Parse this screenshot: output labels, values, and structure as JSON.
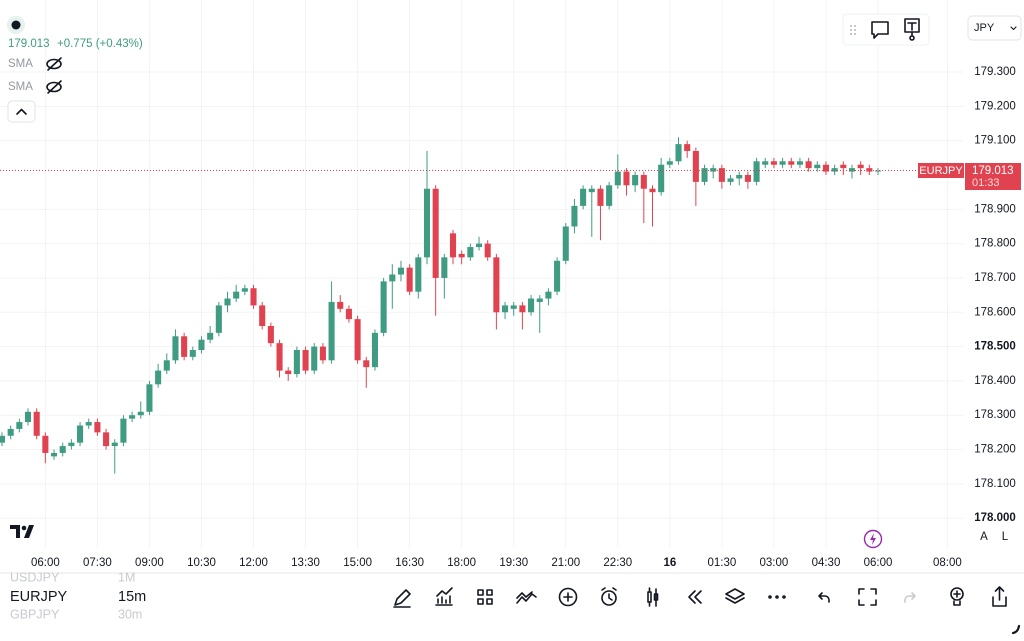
{
  "chart_data": {
    "type": "candlestick",
    "symbol": "EURJPY",
    "last_time": "01:33",
    "up_color": "#3f9c82",
    "down_color": "#e0434f",
    "grid": true,
    "ylim": [
      177.913,
      179.51
    ],
    "xlim": [
      -0.23,
      110.8
    ],
    "yticks": [
      {
        "value": 178.0,
        "label": "178.000"
      },
      {
        "value": 178.1,
        "label": "178.100"
      },
      {
        "value": 178.2,
        "label": "178.200"
      },
      {
        "value": 178.3,
        "label": "178.300"
      },
      {
        "value": 178.4,
        "label": "178.400"
      },
      {
        "value": 178.5,
        "label": "178.500"
      },
      {
        "value": 178.6,
        "label": "178.600"
      },
      {
        "value": 178.7,
        "label": "178.700"
      },
      {
        "value": 178.8,
        "label": "178.800"
      },
      {
        "value": 178.9,
        "label": "178.900"
      },
      {
        "value": 179.1,
        "label": "179.100"
      },
      {
        "value": 179.2,
        "label": "179.200"
      },
      {
        "value": 179.3,
        "label": "179.300"
      }
    ],
    "xticks": [
      {
        "value": 5,
        "label": "06:00"
      },
      {
        "value": 11,
        "label": "07:30"
      },
      {
        "value": 17,
        "label": "09:00"
      },
      {
        "value": 23,
        "label": "10:30"
      },
      {
        "value": 29,
        "label": "12:00"
      },
      {
        "value": 35,
        "label": "13:30"
      },
      {
        "value": 41,
        "label": "15:00"
      },
      {
        "value": 47,
        "label": "16:30"
      },
      {
        "value": 53,
        "label": "18:00"
      },
      {
        "value": 59,
        "label": "19:30"
      },
      {
        "value": 65,
        "label": "21:00"
      },
      {
        "value": 71,
        "label": "22:30"
      },
      {
        "value": 77,
        "label": "16"
      },
      {
        "value": 83,
        "label": "01:30"
      },
      {
        "value": 89,
        "label": "03:00"
      },
      {
        "value": 95,
        "label": "04:30"
      },
      {
        "value": 101,
        "label": "06:00"
      },
      {
        "value": 109,
        "label": "08:00"
      }
    ],
    "open": [
      178.22,
      178.24,
      178.26,
      178.28,
      178.31,
      178.24,
      178.18,
      178.19,
      178.21,
      178.22,
      178.27,
      178.28,
      178.25,
      178.21,
      178.22,
      178.29,
      178.3,
      178.31,
      178.39,
      178.43,
      178.46,
      178.53,
      178.47,
      178.49,
      178.52,
      178.54,
      178.62,
      178.64,
      178.66,
      178.67,
      178.62,
      178.56,
      178.51,
      178.43,
      178.42,
      178.49,
      178.43,
      178.5,
      178.46,
      178.63,
      178.61,
      178.58,
      178.46,
      178.44,
      178.54,
      178.69,
      178.71,
      178.73,
      178.66,
      178.76,
      178.96,
      178.7,
      178.83,
      178.77,
      178.76,
      178.79,
      178.8,
      178.76,
      178.6,
      178.61,
      178.62,
      178.6,
      178.63,
      178.64,
      178.66,
      178.75,
      178.85,
      178.91,
      178.95,
      178.96,
      178.91,
      178.97,
      179.01,
      178.97,
      179.0,
      178.96,
      178.95,
      179.03,
      179.04,
      179.09,
      179.07,
      178.98,
      179.01,
      179.02,
      178.98,
      178.99,
      179.0,
      178.98,
      179.03,
      179.04,
      179.03,
      179.04,
      179.03,
      179.04,
      179.02,
      179.03,
      179.01,
      179.03,
      179.01,
      179.03,
      179.02,
      179.01
    ],
    "high": [
      178.25,
      178.27,
      178.29,
      178.32,
      178.32,
      178.25,
      178.2,
      178.22,
      178.23,
      178.28,
      178.29,
      178.29,
      178.26,
      178.23,
      178.3,
      178.31,
      178.34,
      178.4,
      178.45,
      178.48,
      178.55,
      178.54,
      178.5,
      178.53,
      178.56,
      178.63,
      178.66,
      178.68,
      178.68,
      178.68,
      178.63,
      178.57,
      178.52,
      178.44,
      178.5,
      178.5,
      178.51,
      178.51,
      178.69,
      178.65,
      178.62,
      178.59,
      178.47,
      178.55,
      178.7,
      178.74,
      178.75,
      178.74,
      178.77,
      179.07,
      178.97,
      178.77,
      178.84,
      178.78,
      178.8,
      178.82,
      178.81,
      178.77,
      178.63,
      178.63,
      178.63,
      178.65,
      178.65,
      178.67,
      178.76,
      178.86,
      178.93,
      178.97,
      178.97,
      178.97,
      178.98,
      179.06,
      179.02,
      179.01,
      179.01,
      178.97,
      179.05,
      179.05,
      179.11,
      179.1,
      179.08,
      179.03,
      179.03,
      179.03,
      179.0,
      179.01,
      179.01,
      179.05,
      179.05,
      179.05,
      179.05,
      179.05,
      179.05,
      179.05,
      179.04,
      179.04,
      179.03,
      179.04,
      179.03,
      179.04,
      179.03,
      179.02
    ],
    "low": [
      178.21,
      178.23,
      178.25,
      178.27,
      178.23,
      178.16,
      178.17,
      178.18,
      178.2,
      178.21,
      178.26,
      178.24,
      178.2,
      178.13,
      178.21,
      178.28,
      178.29,
      178.3,
      178.38,
      178.42,
      178.45,
      178.46,
      178.46,
      178.48,
      178.51,
      178.53,
      178.6,
      178.63,
      178.65,
      178.61,
      178.55,
      178.5,
      178.41,
      178.4,
      178.41,
      178.42,
      178.42,
      178.45,
      178.45,
      178.6,
      178.57,
      178.45,
      178.38,
      178.43,
      178.53,
      178.61,
      178.69,
      178.65,
      178.64,
      178.74,
      178.59,
      178.64,
      178.74,
      178.74,
      178.75,
      178.78,
      178.75,
      178.55,
      178.58,
      178.59,
      178.55,
      178.59,
      178.54,
      178.62,
      178.65,
      178.74,
      178.83,
      178.9,
      178.82,
      178.81,
      178.9,
      178.96,
      178.94,
      178.95,
      178.86,
      178.85,
      178.94,
      179.02,
      179.03,
      179.05,
      178.91,
      178.97,
      178.99,
      178.96,
      178.97,
      178.97,
      178.96,
      178.97,
      179.02,
      179.02,
      179.02,
      179.02,
      179.02,
      179.01,
      179.01,
      179.0,
      179.0,
      179.0,
      178.99,
      179.0,
      179.0,
      179.0
    ],
    "close": [
      178.24,
      178.26,
      178.28,
      178.31,
      178.24,
      178.19,
      178.19,
      178.21,
      178.22,
      178.27,
      178.28,
      178.25,
      178.21,
      178.22,
      178.29,
      178.3,
      178.31,
      178.39,
      178.43,
      178.46,
      178.53,
      178.47,
      178.49,
      178.52,
      178.54,
      178.62,
      178.64,
      178.66,
      178.67,
      178.62,
      178.56,
      178.51,
      178.43,
      178.42,
      178.49,
      178.43,
      178.5,
      178.46,
      178.63,
      178.61,
      178.58,
      178.46,
      178.44,
      178.54,
      178.69,
      178.71,
      178.73,
      178.66,
      178.76,
      178.96,
      178.7,
      178.76,
      178.76,
      178.76,
      178.79,
      178.8,
      178.76,
      178.6,
      178.62,
      178.62,
      178.6,
      178.64,
      178.64,
      178.66,
      178.75,
      178.85,
      178.91,
      178.96,
      178.96,
      178.91,
      178.97,
      179.01,
      178.97,
      179.0,
      178.96,
      178.95,
      179.03,
      179.04,
      179.09,
      179.07,
      178.98,
      179.02,
      179.02,
      178.98,
      178.99,
      179.0,
      178.98,
      179.04,
      179.04,
      179.03,
      179.04,
      179.03,
      179.04,
      179.02,
      179.03,
      179.01,
      179.02,
      179.02,
      179.02,
      179.02,
      179.01,
      179.013
    ]
  },
  "header": {
    "last": "179.013",
    "change": "+0.775 (+0.43%)",
    "indicators": [
      "SMA",
      "SMA"
    ]
  },
  "currency": "JPY",
  "scale_buttons": [
    "A",
    "L"
  ],
  "symbols": [
    {
      "name": "USDJPY",
      "interval": "1M"
    },
    {
      "name": "EURJPY",
      "interval": "15m"
    },
    {
      "name": "GBPJPY",
      "interval": "30m"
    }
  ]
}
